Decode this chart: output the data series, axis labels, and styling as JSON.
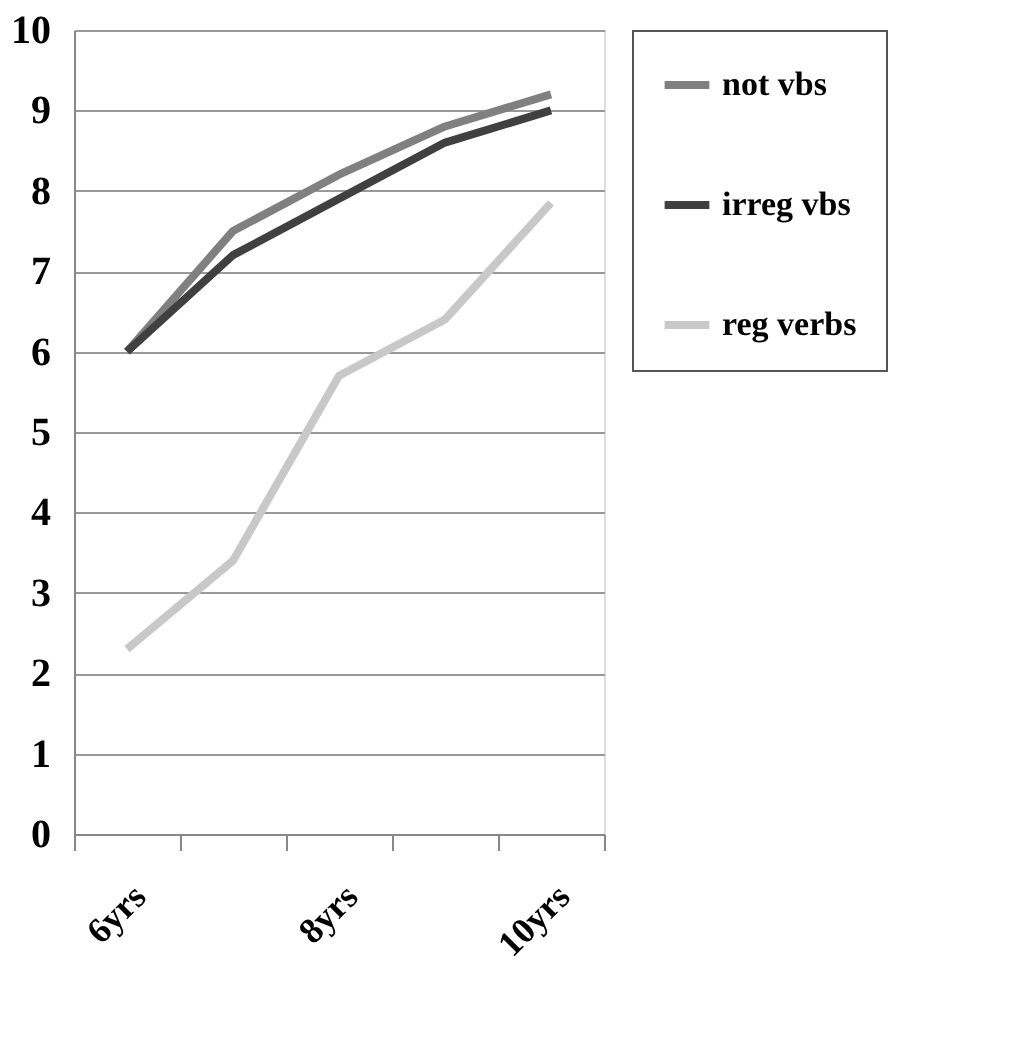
{
  "chart_data": {
    "type": "line",
    "categories": [
      "6yrs",
      null,
      "8yrs",
      null,
      "10yrs"
    ],
    "series": [
      {
        "name": "not vbs",
        "color": "#808080",
        "values": [
          6,
          7.5,
          8.2,
          8.8,
          9.2
        ]
      },
      {
        "name": "irreg vbs",
        "color": "#404040",
        "values": [
          6,
          7.2,
          7.9,
          8.6,
          9.0
        ]
      },
      {
        "name": "reg verbs",
        "color": "#c8c8c8",
        "values": [
          2.3,
          3.4,
          5.7,
          6.4,
          7.85
        ]
      }
    ],
    "ylim": [
      0,
      10
    ],
    "yticks": [
      0,
      1,
      2,
      3,
      4,
      5,
      6,
      7,
      8,
      9,
      10
    ],
    "grid": "y",
    "legend": "right",
    "line_style": "solid",
    "marker": "none"
  }
}
